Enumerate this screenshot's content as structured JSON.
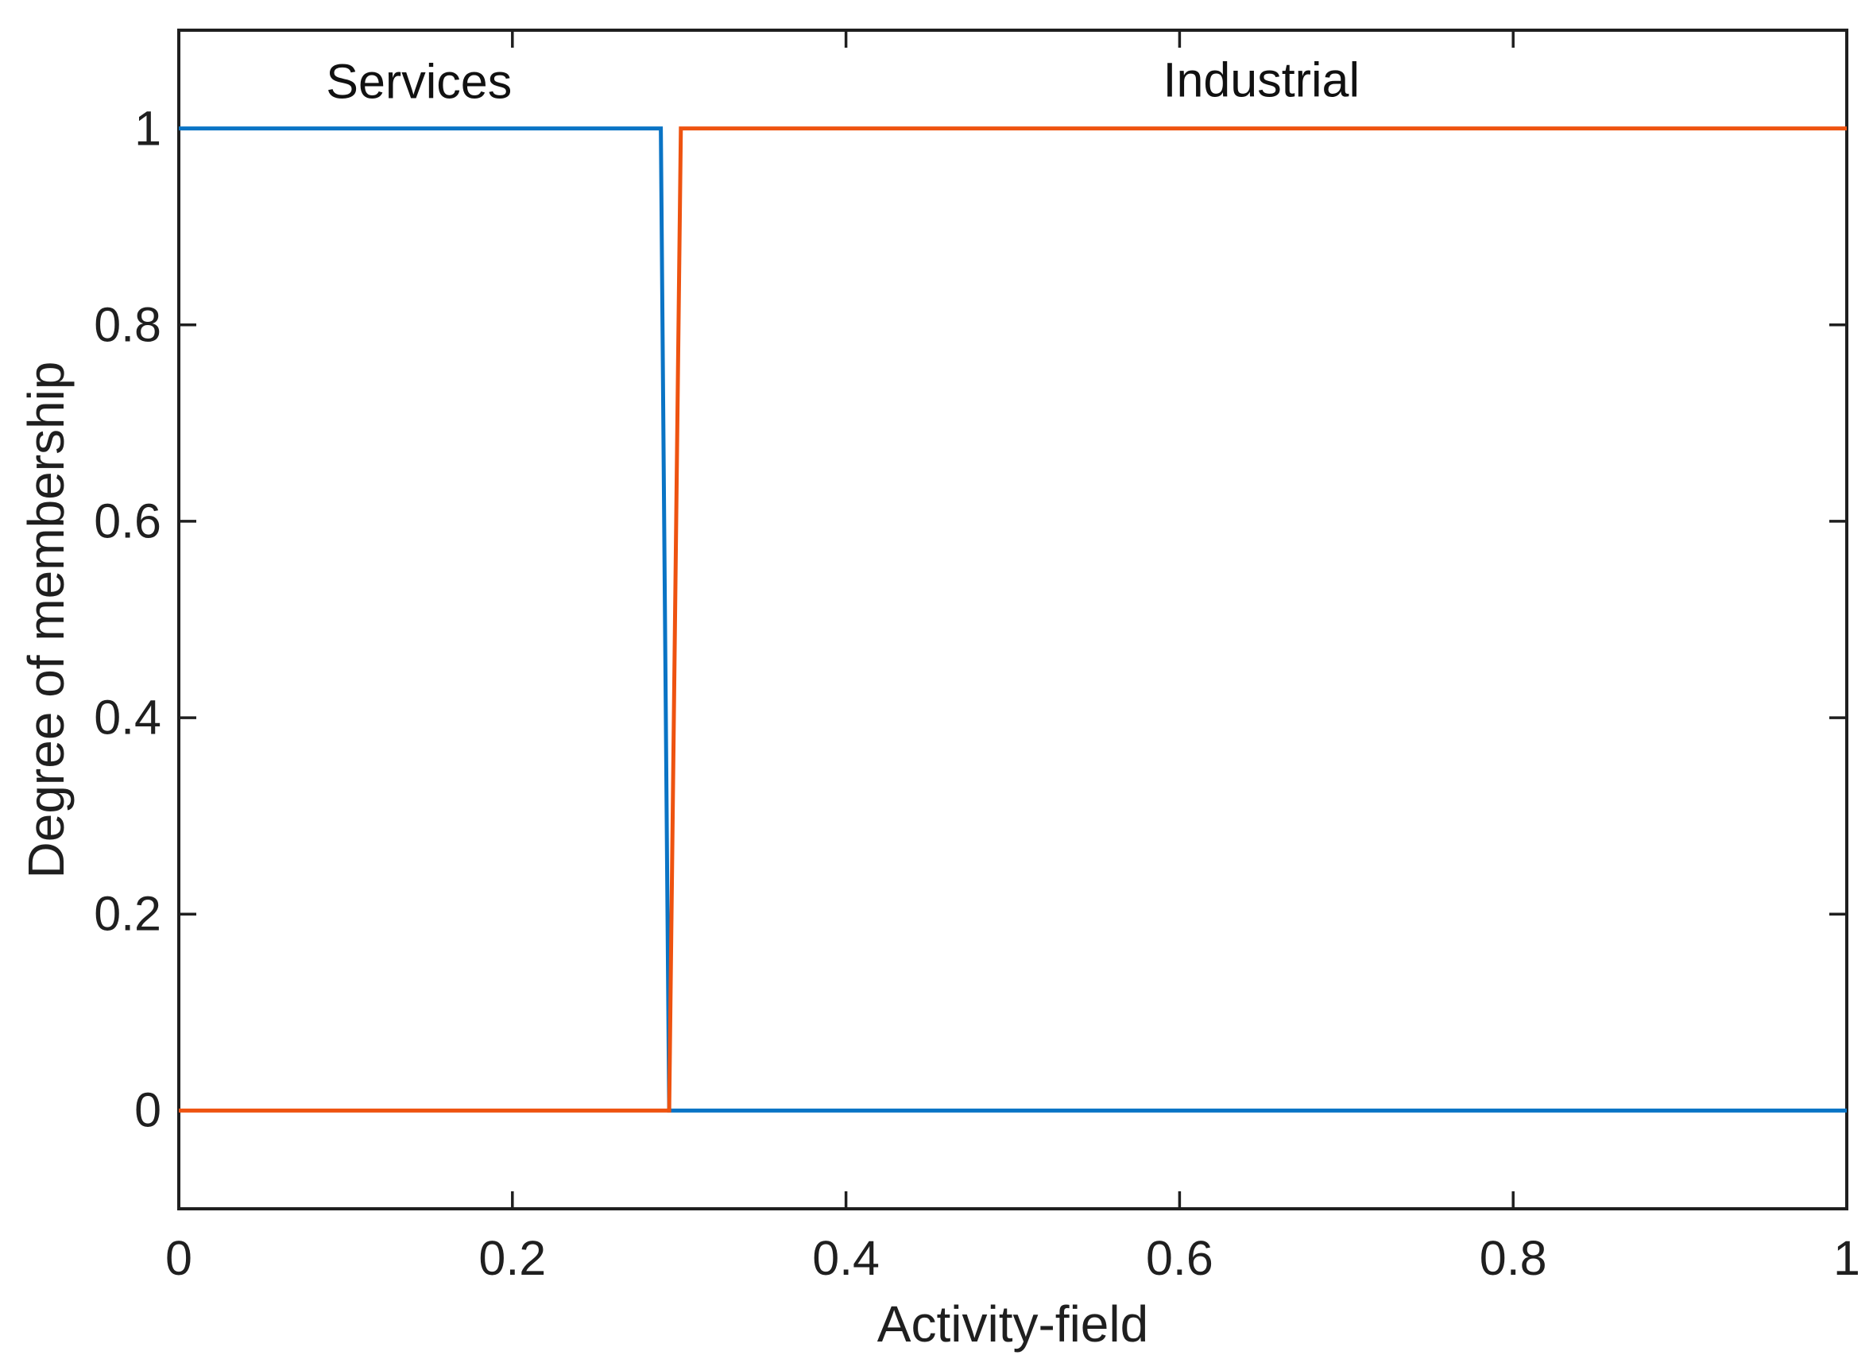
{
  "figure": {
    "background": "#ffffff",
    "axis_color": "#1f1f1f",
    "text_color": "#1f1f1f"
  },
  "chart_data": {
    "type": "line",
    "title": "",
    "xlabel": "Activity-field",
    "ylabel": "Degree of membership",
    "xlim": [
      0,
      1
    ],
    "ylim": [
      -0.1,
      1.1
    ],
    "grid": false,
    "legend_position": "none",
    "xticks": {
      "values": [
        0,
        0.2,
        0.4,
        0.6,
        0.8,
        1
      ],
      "labels": [
        "0",
        "0.2",
        "0.4",
        "0.6",
        "0.8",
        "1"
      ]
    },
    "yticks": {
      "values": [
        0,
        0.2,
        0.4,
        0.6,
        0.8,
        1
      ],
      "labels": [
        "0",
        "0.2",
        "0.4",
        "0.6",
        "0.8",
        "1"
      ]
    },
    "series": [
      {
        "name": "Services",
        "color": "#0a74c5",
        "points": [
          [
            0,
            1
          ],
          [
            0.289,
            1
          ],
          [
            0.294,
            0
          ],
          [
            1,
            0
          ]
        ]
      },
      {
        "name": "Industrial",
        "color": "#ee5310",
        "points": [
          [
            0,
            0
          ],
          [
            0.294,
            0
          ],
          [
            0.301,
            1
          ],
          [
            1,
            1
          ]
        ]
      }
    ],
    "annotations": [
      {
        "label": "Services",
        "x": 0.144,
        "y": 1.047
      },
      {
        "label": "Industrial",
        "x": 0.649,
        "y": 1.049
      }
    ]
  }
}
